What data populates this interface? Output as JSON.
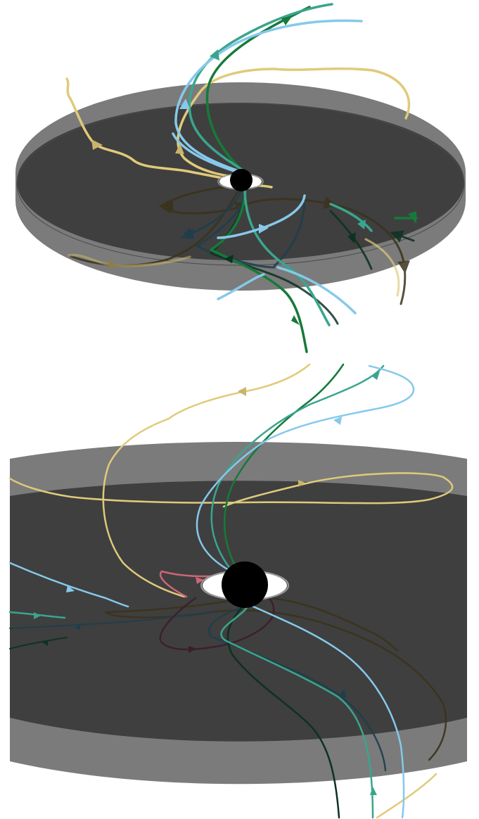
{
  "figure": {
    "panels": [
      {
        "id": "top",
        "disk_color_outer": "#7b7b7b",
        "disk_color_inner": "#3f3f3f",
        "hole_color": "#000000",
        "hole_ring_color": "#ffffff",
        "line_colors": [
          "#e0ca7a",
          "#167a3a",
          "#3aa58e",
          "#86c9ea",
          "#1e3e4c",
          "#0d3120",
          "#3a331b"
        ]
      },
      {
        "id": "bottom",
        "disk_color_outer": "#7b7b7b",
        "disk_color_inner": "#3f3f3f",
        "hole_color": "#000000",
        "hole_ring_color": "#ffffff",
        "line_colors": [
          "#e0ca7a",
          "#167a3a",
          "#3aa58e",
          "#86c9ea",
          "#1e3e4c",
          "#0d3120",
          "#3a331b",
          "#cc6677",
          "#aa4499",
          "#3b1e2c"
        ]
      }
    ]
  }
}
